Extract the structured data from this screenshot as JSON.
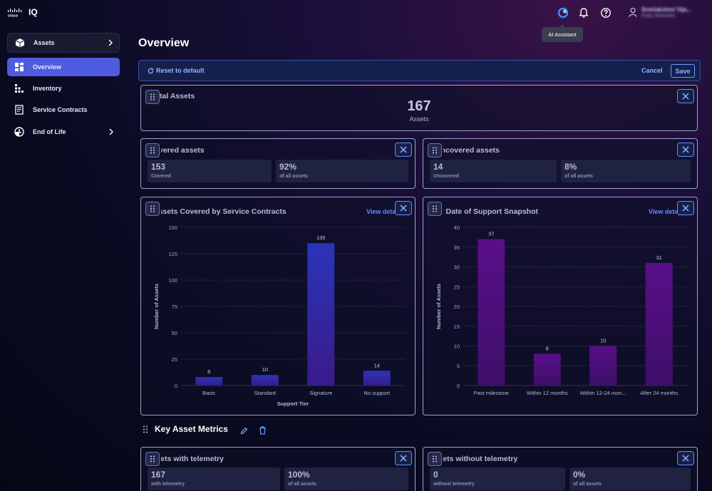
{
  "app": {
    "name": "IQ",
    "brand": "cisco"
  },
  "header": {
    "tooltip": "AI Assistant",
    "user": {
      "name": "Sreelakshmi Vija...",
      "org": "Ruby Networks"
    }
  },
  "sidebar": {
    "items": [
      {
        "label": "Assets",
        "icon": "box-icon",
        "selected": false
      },
      {
        "label": "Overview",
        "icon": "dashboard-icon",
        "selected": true
      },
      {
        "label": "Inventory",
        "icon": "inventory-icon",
        "selected": false
      },
      {
        "label": "Service Contracts",
        "icon": "contract-icon",
        "selected": false
      },
      {
        "label": "End of Life",
        "icon": "clock-icon",
        "selected": false
      }
    ]
  },
  "page": {
    "title": "Overview"
  },
  "actions": {
    "reset": "Reset to default",
    "cancel": "Cancel",
    "save": "Save"
  },
  "total_assets": {
    "title": "Total Assets",
    "value": "167",
    "label": "Assets"
  },
  "covered": {
    "title": "Covered assets",
    "stats": [
      {
        "value": "153",
        "label": "Covered"
      },
      {
        "value": "92%",
        "label": "of all assets"
      }
    ]
  },
  "uncovered": {
    "title": "Uncovered assets",
    "stats": [
      {
        "value": "14",
        "label": "Uncovered"
      },
      {
        "value": "8%",
        "label": "of all assets"
      }
    ]
  },
  "view_details": "View details",
  "key_metrics": {
    "title": "Key Asset Metrics"
  },
  "telemetry": {
    "title": "Assets with telemetry",
    "stats": [
      {
        "value": "167",
        "label": "with telemetry"
      },
      {
        "value": "100%",
        "label": "of all assets"
      }
    ]
  },
  "no_telemetry": {
    "title": "Assets without telemetry",
    "stats": [
      {
        "value": "0",
        "label": "without telemetry"
      },
      {
        "value": "0%",
        "label": "of all assets"
      }
    ]
  },
  "colors": {
    "accent": "#4f5be0",
    "bar_blue": "#2b2aa0",
    "bar_purple": "#4e0f7a"
  },
  "chart_data": [
    {
      "type": "bar",
      "title": "Assets Covered by Service Contracts",
      "categories": [
        "Basic",
        "Standard",
        "Signature",
        "No support"
      ],
      "values": [
        8,
        10,
        135,
        14
      ],
      "xlabel": "Support Tier",
      "ylabel": "Number of Assets",
      "ylim": [
        0,
        150
      ],
      "yticks": [
        0,
        25,
        50,
        75,
        100,
        125,
        150
      ],
      "grid": true
    },
    {
      "type": "bar",
      "title": "Last Date of Support Snapshot",
      "categories": [
        "Past milestone",
        "Within 12 months",
        "Within 12-24 mon...",
        "After 24 months"
      ],
      "values": [
        37,
        8,
        10,
        31
      ],
      "xlabel": "",
      "ylabel": "Number of Assets",
      "ylim": [
        0,
        40
      ],
      "yticks": [
        0,
        5,
        10,
        15,
        20,
        25,
        30,
        35,
        40
      ],
      "grid": true
    }
  ]
}
